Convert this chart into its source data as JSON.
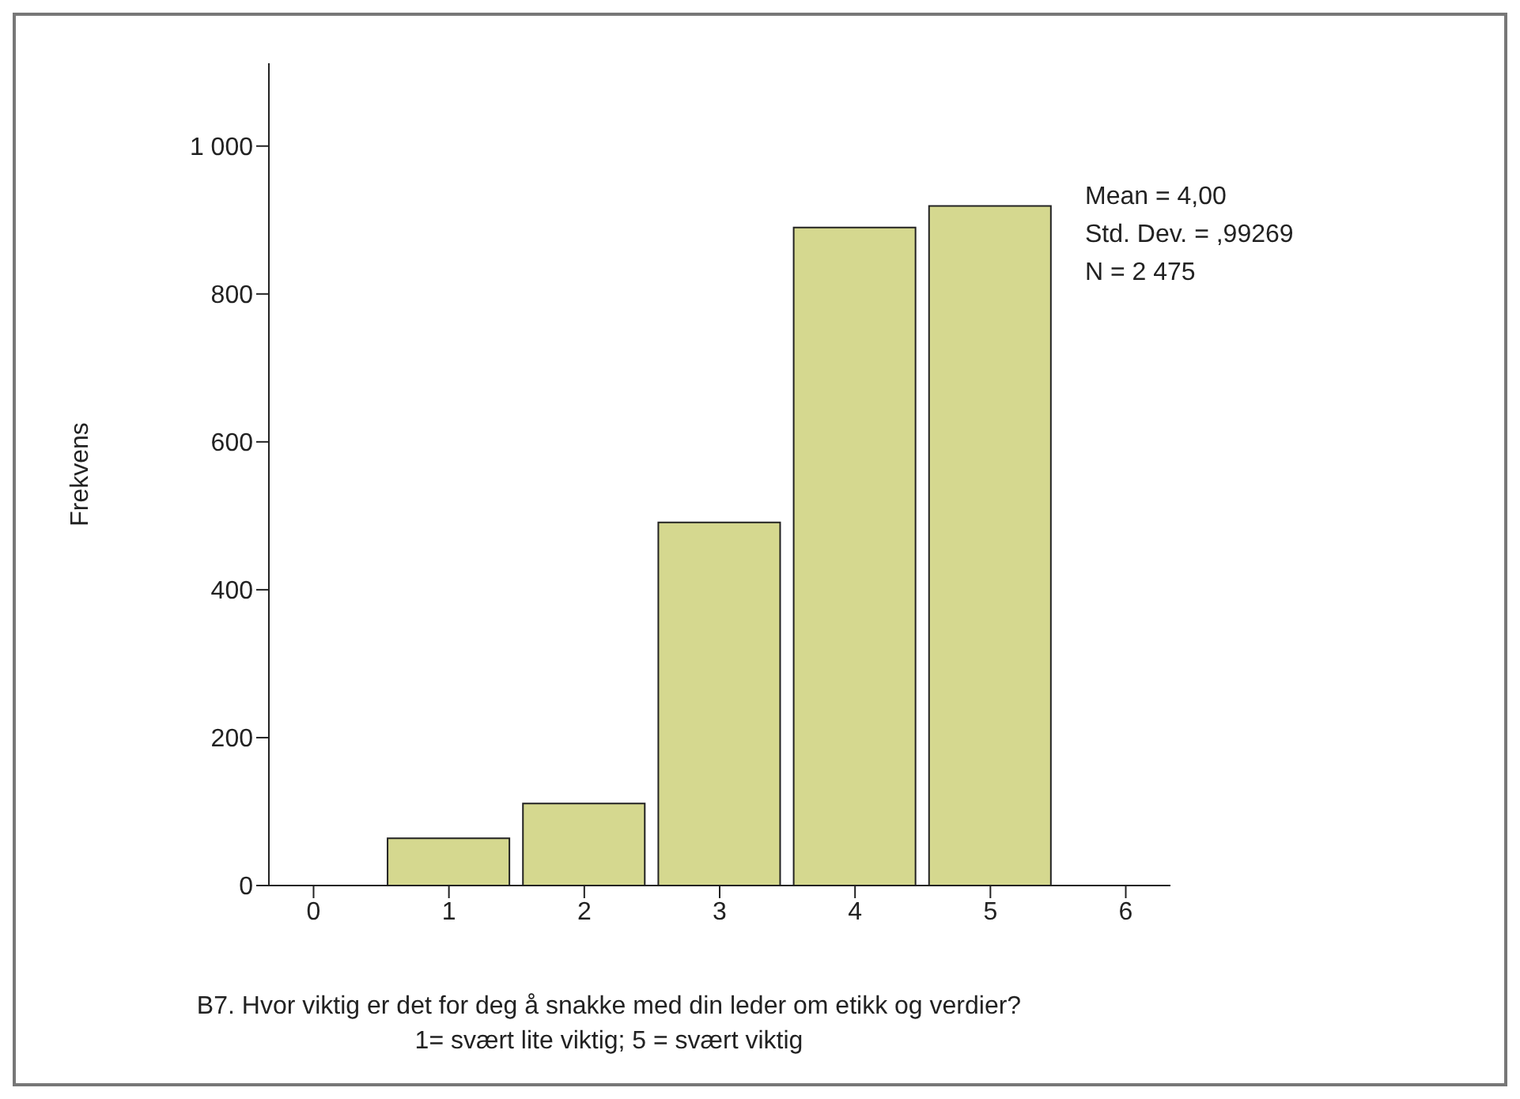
{
  "chart_data": {
    "type": "histogram",
    "xlabel": "B7. Hvor viktig er det for deg å snakke med din leder om etikk og verdier?\n1= svært lite viktig; 5 = svært viktig",
    "ylabel": "Frekvens",
    "bins": [
      0.5,
      1.5,
      2.5,
      3.5,
      4.5,
      5.5
    ],
    "values": [
      64,
      111,
      491,
      890,
      919
    ],
    "color": "#d5d88f",
    "xlim": [
      -0.33,
      6.33
    ],
    "xticks": [
      0,
      1,
      2,
      3,
      4,
      5,
      6
    ],
    "ylim": [
      0,
      1112
    ],
    "yticks": [
      0,
      200,
      400,
      600,
      800,
      {
        "value": 1000,
        "label": "1 000"
      }
    ],
    "grid": false,
    "annotations": [
      "Mean = 4,00",
      "Std. Dev. = ,99269",
      "N = 2 475"
    ]
  }
}
